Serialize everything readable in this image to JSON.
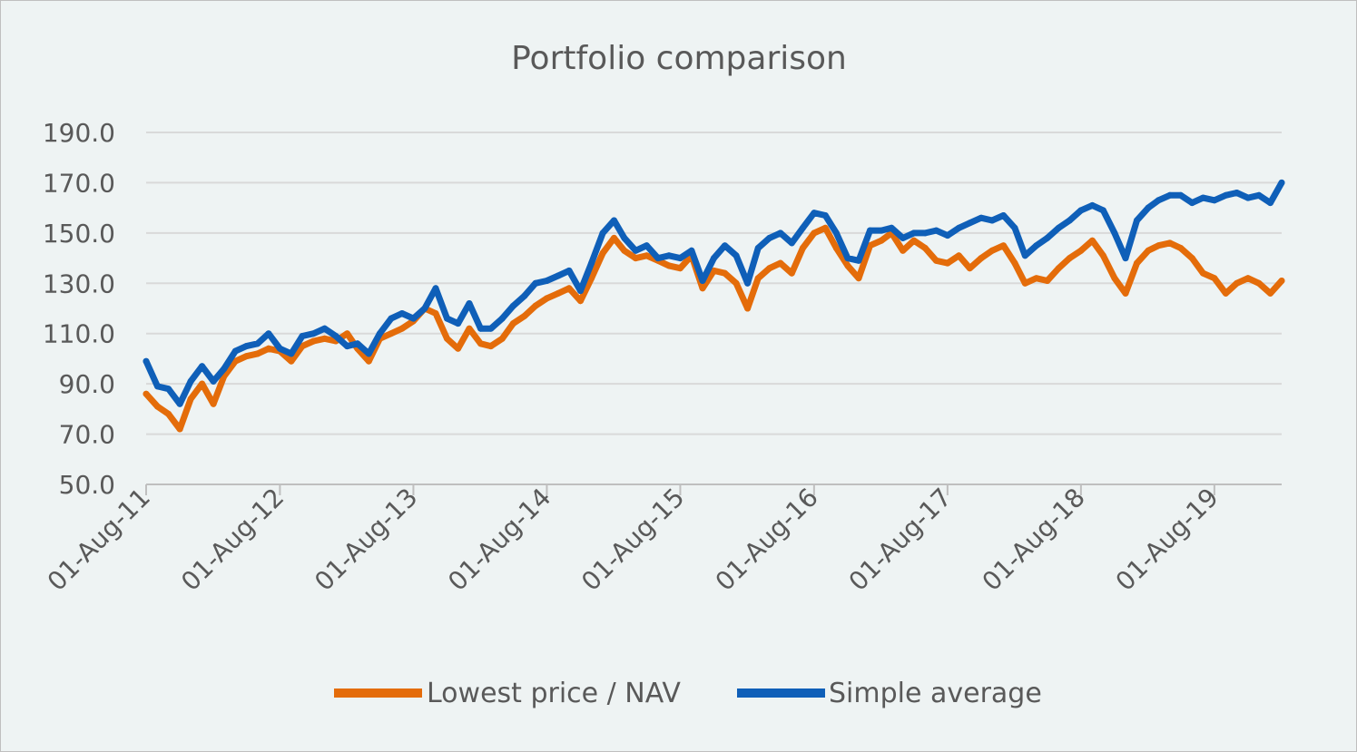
{
  "chart_data": {
    "type": "line",
    "title": "Portfolio comparison",
    "xlabel": "",
    "ylabel": "",
    "ylim": [
      50,
      190
    ],
    "y_ticks": [
      "50.0",
      "70.0",
      "90.0",
      "110.0",
      "130.0",
      "150.0",
      "170.0",
      "190.0"
    ],
    "x_ticks": [
      "01-Aug-11",
      "01-Aug-12",
      "01-Aug-13",
      "01-Aug-14",
      "01-Aug-15",
      "01-Aug-16",
      "01-Aug-17",
      "01-Aug-18",
      "01-Aug-19"
    ],
    "grid": "horizontal",
    "legend_position": "bottom",
    "x": [
      "2011-08-01",
      "2011-09-01",
      "2011-10-01",
      "2011-11-01",
      "2011-12-01",
      "2012-01-01",
      "2012-02-01",
      "2012-03-01",
      "2012-04-01",
      "2012-05-01",
      "2012-06-01",
      "2012-07-01",
      "2012-08-01",
      "2012-09-01",
      "2012-10-01",
      "2012-11-01",
      "2012-12-01",
      "2013-01-01",
      "2013-02-01",
      "2013-03-01",
      "2013-04-01",
      "2013-05-01",
      "2013-06-01",
      "2013-07-01",
      "2013-08-01",
      "2013-09-01",
      "2013-10-01",
      "2013-11-01",
      "2013-12-01",
      "2014-01-01",
      "2014-02-01",
      "2014-03-01",
      "2014-04-01",
      "2014-05-01",
      "2014-06-01",
      "2014-07-01",
      "2014-08-01",
      "2014-09-01",
      "2014-10-01",
      "2014-11-01",
      "2014-12-01",
      "2015-01-01",
      "2015-02-01",
      "2015-03-01",
      "2015-04-01",
      "2015-05-01",
      "2015-06-01",
      "2015-07-01",
      "2015-08-01",
      "2015-09-01",
      "2015-10-01",
      "2015-11-01",
      "2015-12-01",
      "2016-01-01",
      "2016-02-01",
      "2016-03-01",
      "2016-04-01",
      "2016-05-01",
      "2016-06-01",
      "2016-07-01",
      "2016-08-01",
      "2016-09-01",
      "2016-10-01",
      "2016-11-01",
      "2016-12-01",
      "2017-01-01",
      "2017-02-01",
      "2017-03-01",
      "2017-04-01",
      "2017-05-01",
      "2017-06-01",
      "2017-07-01",
      "2017-08-01",
      "2017-09-01",
      "2017-10-01",
      "2017-11-01",
      "2017-12-01",
      "2018-01-01",
      "2018-02-01",
      "2018-03-01",
      "2018-04-01",
      "2018-05-01",
      "2018-06-01",
      "2018-07-01",
      "2018-08-01",
      "2018-09-01",
      "2018-10-01",
      "2018-11-01",
      "2018-12-01",
      "2019-01-01",
      "2019-02-01",
      "2019-03-01",
      "2019-04-01",
      "2019-05-01",
      "2019-06-01",
      "2019-07-01",
      "2019-08-01",
      "2019-09-01",
      "2019-10-01",
      "2019-11-01",
      "2019-12-01",
      "2020-01-01",
      "2020-02-01"
    ],
    "series": [
      {
        "name": "Lowest price / NAV",
        "color": "#e46c0a",
        "values": [
          86,
          81,
          78,
          72,
          84,
          90,
          82,
          93,
          99,
          101,
          102,
          104,
          103,
          99,
          105,
          107,
          108,
          107,
          110,
          104,
          99,
          108,
          110,
          112,
          115,
          120,
          118,
          108,
          104,
          112,
          106,
          105,
          108,
          114,
          117,
          121,
          124,
          126,
          128,
          123,
          132,
          142,
          148,
          143,
          140,
          141,
          139,
          137,
          136,
          141,
          128,
          135,
          134,
          130,
          120,
          132,
          136,
          138,
          134,
          144,
          150,
          152,
          144,
          137,
          132,
          145,
          147,
          150,
          143,
          147,
          144,
          139,
          138,
          141,
          136,
          140,
          143,
          145,
          138,
          130,
          132,
          131,
          136,
          140,
          143,
          147,
          141,
          132,
          126,
          138,
          143,
          145,
          146,
          144,
          140,
          134,
          132,
          126,
          130,
          132,
          130,
          126,
          131
        ]
      },
      {
        "name": "Simple average",
        "color": "#0f5fb8",
        "values": [
          99,
          89,
          88,
          82,
          91,
          97,
          91,
          96,
          103,
          105,
          106,
          110,
          104,
          102,
          109,
          110,
          112,
          109,
          105,
          106,
          102,
          110,
          116,
          118,
          116,
          120,
          128,
          116,
          114,
          122,
          112,
          112,
          116,
          121,
          125,
          130,
          131,
          133,
          135,
          127,
          138,
          150,
          155,
          148,
          143,
          145,
          140,
          141,
          140,
          143,
          131,
          140,
          145,
          141,
          130,
          144,
          148,
          150,
          146,
          152,
          158,
          157,
          150,
          140,
          139,
          151,
          151,
          152,
          148,
          150,
          150,
          151,
          149,
          152,
          154,
          156,
          155,
          157,
          152,
          141,
          145,
          148,
          152,
          155,
          159,
          161,
          159,
          150,
          140,
          155,
          160,
          163,
          165,
          165,
          162,
          164,
          163,
          165,
          166,
          164,
          165,
          162,
          170
        ]
      }
    ]
  }
}
